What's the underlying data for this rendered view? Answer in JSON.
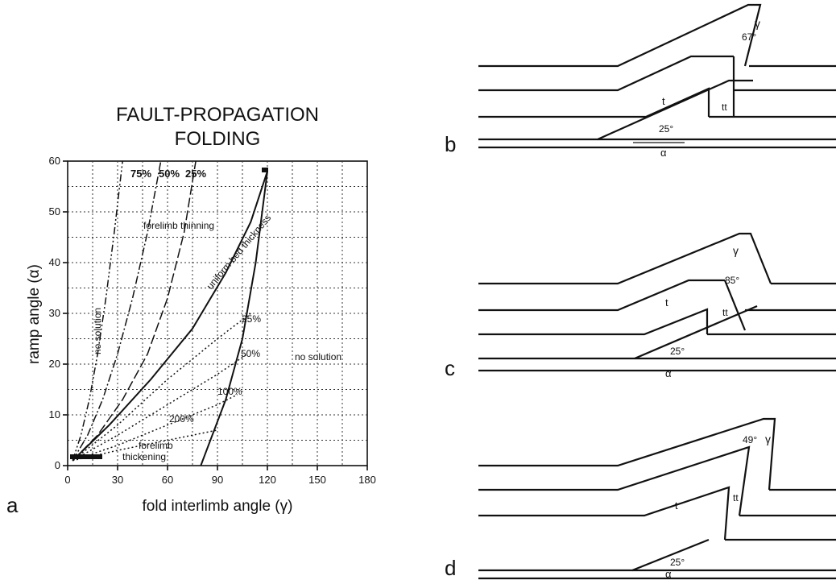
{
  "title": {
    "line1": "FAULT-PROPAGATION",
    "line2": "FOLDING"
  },
  "chart_data": {
    "type": "line",
    "xlabel": "fold interlimb angle (γ)",
    "ylabel": "ramp angle (α)",
    "xlim": [
      0,
      180
    ],
    "ylim": [
      0,
      60
    ],
    "xticks": [
      "0",
      "30",
      "60",
      "90",
      "120",
      "150",
      "180"
    ],
    "yticks": [
      "0",
      "10",
      "20",
      "30",
      "40",
      "50",
      "60"
    ],
    "grid": true,
    "series": [
      {
        "name": "75%",
        "style": "dash-dot-dot",
        "x": [
          3,
          8,
          13,
          18,
          23,
          28,
          33
        ],
        "y": [
          1,
          6,
          13,
          22,
          33,
          46,
          60
        ]
      },
      {
        "name": "50%",
        "style": "dash-dot",
        "x": [
          3,
          12,
          21,
          30,
          39,
          48,
          56
        ],
        "y": [
          1,
          6,
          13,
          22,
          33,
          46,
          60
        ]
      },
      {
        "name": "25%",
        "style": "long-dash",
        "x": [
          3,
          18,
          33,
          48,
          60,
          70,
          77
        ],
        "y": [
          1,
          6,
          13,
          22,
          33,
          46,
          60
        ]
      },
      {
        "name": "uniform bed thickness",
        "style": "solid",
        "x": [
          3,
          25,
          50,
          75,
          95,
          110,
          120
        ],
        "y": [
          1,
          8,
          17,
          27,
          38,
          48,
          58
        ]
      },
      {
        "name": "25%",
        "style": "dotted",
        "x": [
          3,
          30,
          60,
          90,
          110
        ],
        "y": [
          1,
          8,
          17,
          25,
          30
        ]
      },
      {
        "name": "50%",
        "style": "dotted",
        "x": [
          3,
          30,
          60,
          90,
          108
        ],
        "y": [
          1,
          6,
          12,
          18,
          22
        ]
      },
      {
        "name": "100%",
        "style": "dotted",
        "x": [
          3,
          30,
          60,
          90,
          102
        ],
        "y": [
          1,
          4,
          8,
          12,
          14
        ]
      },
      {
        "name": "200%",
        "style": "dotted",
        "x": [
          3,
          30,
          60,
          90
        ],
        "y": [
          1,
          3,
          5,
          7
        ]
      },
      {
        "name": "",
        "style": "solid",
        "x": [
          80,
          95,
          105,
          113,
          120
        ],
        "y": [
          0,
          13,
          25,
          40,
          58
        ]
      }
    ],
    "annotations": [
      "forelimb thinning",
      "no solution",
      "no solution",
      "forelimb thickening"
    ]
  },
  "panel_labels": {
    "a": "a",
    "b": "b",
    "c": "c",
    "d": "d"
  },
  "panels": {
    "b": {
      "angle_top": "67°",
      "gamma": "γ",
      "t": "t",
      "tt": "tt",
      "ramp_angle": "25°",
      "alpha": "α"
    },
    "c": {
      "angle_top": "85°",
      "gamma": "γ",
      "t": "t",
      "tt": "tt",
      "ramp_angle": "25°",
      "alpha": "α"
    },
    "d": {
      "angle_top": "49°",
      "gamma": "γ",
      "t": "t",
      "tt": "tt",
      "ramp_angle": "25°",
      "alpha": "α"
    }
  }
}
